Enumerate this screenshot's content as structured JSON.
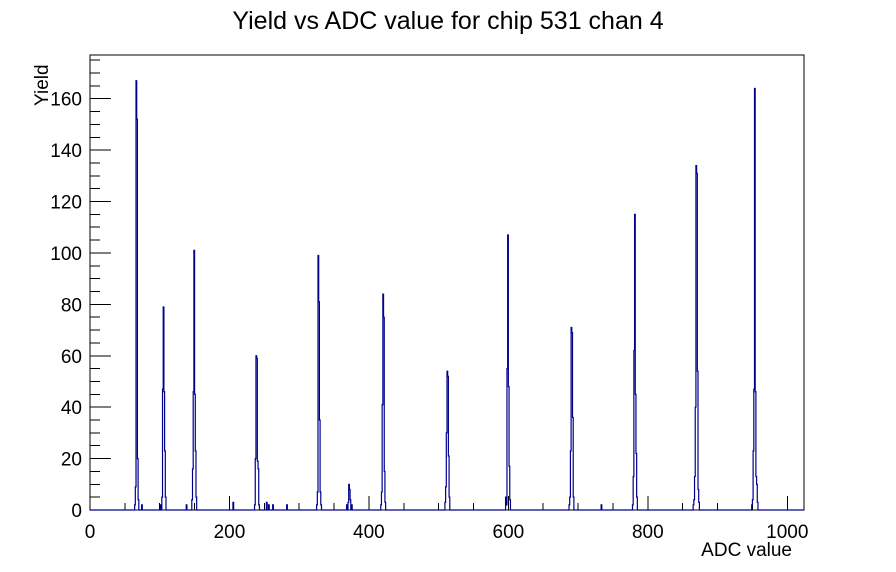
{
  "page": {
    "title": "Yield vs ADC value for chip 531 chan 4"
  },
  "colors": {
    "histogram_line": "#00008b",
    "axis": "#000000",
    "background": "#ffffff",
    "text": "#000000"
  },
  "chart_data": {
    "type": "bar",
    "style": "step-histogram-outline",
    "title": "Yield vs ADC value for chip 531 chan 4",
    "xlabel": "ADC value",
    "ylabel": "Yield",
    "xlim": [
      0,
      1024
    ],
    "ylim": [
      0,
      177
    ],
    "bin_width": 1,
    "grid": false,
    "legend": false,
    "x_major_ticks": [
      0,
      200,
      400,
      600,
      800,
      1000
    ],
    "x_minor_tick_step": 50,
    "y_major_ticks": [
      0,
      20,
      40,
      60,
      80,
      100,
      120,
      140,
      160
    ],
    "y_minor_tick_step": 5,
    "bins": [
      [
        64,
        2
      ],
      [
        65,
        9
      ],
      [
        66,
        167
      ],
      [
        67,
        152
      ],
      [
        68,
        20
      ],
      [
        69,
        4
      ],
      [
        74,
        2
      ],
      [
        101,
        2
      ],
      [
        103,
        5
      ],
      [
        104,
        47
      ],
      [
        105,
        79
      ],
      [
        106,
        46
      ],
      [
        107,
        23
      ],
      [
        108,
        5
      ],
      [
        138,
        2
      ],
      [
        146,
        4
      ],
      [
        147,
        16
      ],
      [
        148,
        46
      ],
      [
        149,
        101
      ],
      [
        150,
        45
      ],
      [
        151,
        23
      ],
      [
        152,
        5
      ],
      [
        205,
        3
      ],
      [
        236,
        2
      ],
      [
        237,
        20
      ],
      [
        238,
        60
      ],
      [
        239,
        59
      ],
      [
        240,
        19
      ],
      [
        241,
        16
      ],
      [
        242,
        2
      ],
      [
        253,
        3
      ],
      [
        256,
        2
      ],
      [
        262,
        2
      ],
      [
        282,
        2
      ],
      [
        325,
        2
      ],
      [
        326,
        7
      ],
      [
        327,
        99
      ],
      [
        328,
        81
      ],
      [
        329,
        35
      ],
      [
        330,
        7
      ],
      [
        331,
        2
      ],
      [
        368,
        2
      ],
      [
        370,
        3
      ],
      [
        371,
        10
      ],
      [
        372,
        8
      ],
      [
        373,
        4
      ],
      [
        375,
        2
      ],
      [
        417,
        2
      ],
      [
        418,
        7
      ],
      [
        419,
        41
      ],
      [
        420,
        84
      ],
      [
        421,
        75
      ],
      [
        422,
        15
      ],
      [
        423,
        3
      ],
      [
        509,
        3
      ],
      [
        510,
        9
      ],
      [
        511,
        30
      ],
      [
        512,
        54
      ],
      [
        513,
        52
      ],
      [
        514,
        21
      ],
      [
        515,
        5
      ],
      [
        596,
        5
      ],
      [
        597,
        2
      ],
      [
        598,
        55
      ],
      [
        599,
        107
      ],
      [
        600,
        48
      ],
      [
        601,
        17
      ],
      [
        602,
        4
      ],
      [
        687,
        2
      ],
      [
        688,
        5
      ],
      [
        689,
        23
      ],
      [
        690,
        71
      ],
      [
        691,
        69
      ],
      [
        692,
        36
      ],
      [
        693,
        5
      ],
      [
        733,
        2
      ],
      [
        778,
        2
      ],
      [
        779,
        13
      ],
      [
        780,
        62
      ],
      [
        781,
        115
      ],
      [
        782,
        45
      ],
      [
        783,
        22
      ],
      [
        784,
        5
      ],
      [
        865,
        2
      ],
      [
        866,
        4
      ],
      [
        867,
        13
      ],
      [
        868,
        40
      ],
      [
        869,
        134
      ],
      [
        870,
        131
      ],
      [
        871,
        54
      ],
      [
        872,
        8
      ],
      [
        873,
        3
      ],
      [
        949,
        2
      ],
      [
        950,
        4
      ],
      [
        951,
        23
      ],
      [
        952,
        47
      ],
      [
        953,
        164
      ],
      [
        954,
        46
      ],
      [
        955,
        13
      ],
      [
        956,
        10
      ],
      [
        957,
        3
      ]
    ]
  }
}
